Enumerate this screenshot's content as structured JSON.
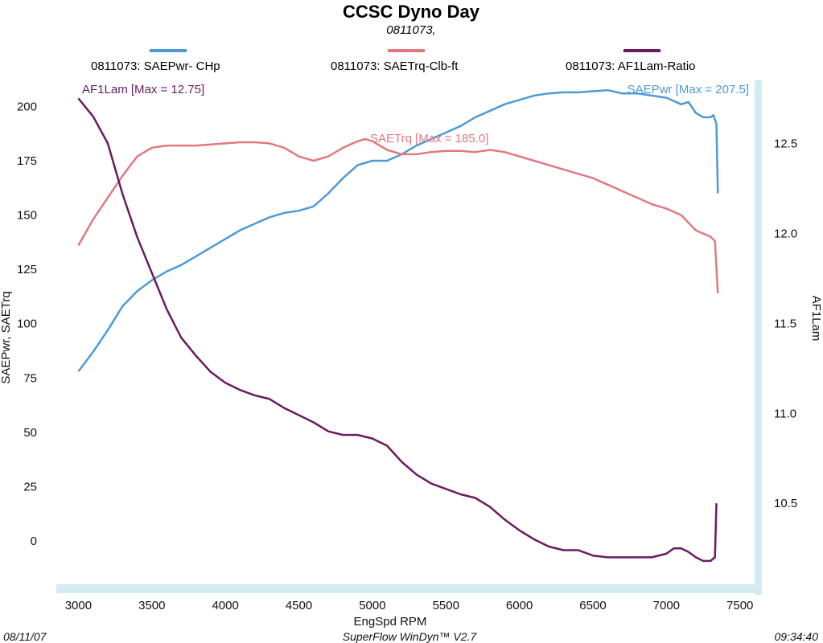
{
  "colors": {
    "power": "#4e9ad6",
    "torque": "#e07a80",
    "afr": "#6a1b62",
    "frame": "#c5e3ea"
  },
  "chart_data": {
    "type": "line",
    "title": "CCSC Dyno Day",
    "subtitle": "0811073,",
    "xlabel": "EngSpd  RPM",
    "ylabel_left": "SAEPwr, SAETrq",
    "ylabel_right": "AF1Lam",
    "xlim": [
      2850,
      7600
    ],
    "ylim_left": [
      -20,
      212
    ],
    "ylim_right": [
      10.05,
      12.85
    ],
    "x_ticks": [
      3000,
      3500,
      4000,
      4500,
      5000,
      5500,
      6000,
      6500,
      7000,
      7500
    ],
    "y_left_ticks": [
      0,
      25,
      50,
      75,
      100,
      125,
      150,
      175,
      200
    ],
    "y_right_ticks": [
      "10.5",
      "11.0",
      "11.5",
      "12.0",
      "12.5"
    ],
    "legend_position": "top",
    "series": [
      {
        "name": "0811073: SAEPwr- CHp",
        "axis": "left",
        "color": "#4e9ad6",
        "max_label": "SAEPwr [Max = 207.5]",
        "points": [
          [
            3000,
            78
          ],
          [
            3100,
            87
          ],
          [
            3200,
            97
          ],
          [
            3300,
            108
          ],
          [
            3400,
            115
          ],
          [
            3500,
            120
          ],
          [
            3600,
            124
          ],
          [
            3700,
            127
          ],
          [
            3800,
            131
          ],
          [
            3900,
            135
          ],
          [
            4000,
            139
          ],
          [
            4100,
            143
          ],
          [
            4200,
            146
          ],
          [
            4300,
            149
          ],
          [
            4400,
            151
          ],
          [
            4500,
            152
          ],
          [
            4600,
            154
          ],
          [
            4700,
            160
          ],
          [
            4800,
            167
          ],
          [
            4900,
            173
          ],
          [
            5000,
            175
          ],
          [
            5100,
            175
          ],
          [
            5200,
            178
          ],
          [
            5300,
            182
          ],
          [
            5400,
            185
          ],
          [
            5500,
            188
          ],
          [
            5600,
            191
          ],
          [
            5700,
            195
          ],
          [
            5800,
            198
          ],
          [
            5900,
            201
          ],
          [
            6000,
            203
          ],
          [
            6100,
            205
          ],
          [
            6200,
            206
          ],
          [
            6300,
            206.5
          ],
          [
            6400,
            206.5
          ],
          [
            6500,
            207
          ],
          [
            6600,
            207.5
          ],
          [
            6700,
            206
          ],
          [
            6800,
            206
          ],
          [
            6900,
            205
          ],
          [
            7000,
            204
          ],
          [
            7100,
            201
          ],
          [
            7150,
            202
          ],
          [
            7200,
            197
          ],
          [
            7250,
            195
          ],
          [
            7300,
            195
          ],
          [
            7320,
            196
          ],
          [
            7340,
            192
          ],
          [
            7350,
            160
          ]
        ]
      },
      {
        "name": "0811073: SAETrq-Clb-ft",
        "axis": "left",
        "color": "#e07a80",
        "max_label": "SAETrq [Max = 185.0]",
        "points": [
          [
            3000,
            136
          ],
          [
            3100,
            148
          ],
          [
            3200,
            158
          ],
          [
            3300,
            168
          ],
          [
            3400,
            177
          ],
          [
            3500,
            181
          ],
          [
            3600,
            182
          ],
          [
            3700,
            182
          ],
          [
            3800,
            182
          ],
          [
            3900,
            182.5
          ],
          [
            4000,
            183
          ],
          [
            4100,
            183.5
          ],
          [
            4200,
            183.5
          ],
          [
            4300,
            183
          ],
          [
            4400,
            181
          ],
          [
            4500,
            177
          ],
          [
            4600,
            175
          ],
          [
            4700,
            177
          ],
          [
            4800,
            181
          ],
          [
            4900,
            184
          ],
          [
            4950,
            185
          ],
          [
            5000,
            184
          ],
          [
            5100,
            180
          ],
          [
            5200,
            178
          ],
          [
            5300,
            178
          ],
          [
            5400,
            179
          ],
          [
            5500,
            179.5
          ],
          [
            5600,
            179.5
          ],
          [
            5700,
            179
          ],
          [
            5800,
            180
          ],
          [
            5900,
            179
          ],
          [
            6000,
            177
          ],
          [
            6100,
            175
          ],
          [
            6200,
            173
          ],
          [
            6300,
            171
          ],
          [
            6400,
            169
          ],
          [
            6500,
            167
          ],
          [
            6600,
            164
          ],
          [
            6700,
            161
          ],
          [
            6800,
            158
          ],
          [
            6900,
            155
          ],
          [
            7000,
            153
          ],
          [
            7100,
            150
          ],
          [
            7200,
            143
          ],
          [
            7300,
            140
          ],
          [
            7330,
            138
          ],
          [
            7350,
            114
          ]
        ]
      },
      {
        "name": "0811073: AF1Lam-Ratio",
        "axis": "right",
        "color": "#6a1b62",
        "max_label": "AF1Lam [Max = 12.75]",
        "points": [
          [
            3000,
            12.75
          ],
          [
            3100,
            12.65
          ],
          [
            3200,
            12.5
          ],
          [
            3300,
            12.22
          ],
          [
            3400,
            11.98
          ],
          [
            3500,
            11.78
          ],
          [
            3600,
            11.58
          ],
          [
            3700,
            11.42
          ],
          [
            3800,
            11.32
          ],
          [
            3900,
            11.23
          ],
          [
            4000,
            11.17
          ],
          [
            4100,
            11.13
          ],
          [
            4200,
            11.1
          ],
          [
            4300,
            11.08
          ],
          [
            4400,
            11.03
          ],
          [
            4500,
            10.99
          ],
          [
            4600,
            10.95
          ],
          [
            4700,
            10.9
          ],
          [
            4800,
            10.88
          ],
          [
            4900,
            10.88
          ],
          [
            5000,
            10.86
          ],
          [
            5100,
            10.82
          ],
          [
            5200,
            10.73
          ],
          [
            5300,
            10.66
          ],
          [
            5400,
            10.61
          ],
          [
            5500,
            10.58
          ],
          [
            5600,
            10.55
          ],
          [
            5700,
            10.53
          ],
          [
            5800,
            10.48
          ],
          [
            5900,
            10.41
          ],
          [
            6000,
            10.35
          ],
          [
            6100,
            10.3
          ],
          [
            6200,
            10.26
          ],
          [
            6300,
            10.24
          ],
          [
            6400,
            10.24
          ],
          [
            6500,
            10.21
          ],
          [
            6600,
            10.2
          ],
          [
            6700,
            10.2
          ],
          [
            6800,
            10.2
          ],
          [
            6900,
            10.2
          ],
          [
            7000,
            10.22
          ],
          [
            7050,
            10.25
          ],
          [
            7100,
            10.25
          ],
          [
            7150,
            10.23
          ],
          [
            7200,
            10.2
          ],
          [
            7250,
            10.18
          ],
          [
            7300,
            10.18
          ],
          [
            7330,
            10.2
          ],
          [
            7340,
            10.5
          ]
        ]
      }
    ]
  },
  "footer": {
    "date": "08/11/07",
    "software": "SuperFlow WinDyn™ V2.7",
    "time": "09:34:40"
  }
}
